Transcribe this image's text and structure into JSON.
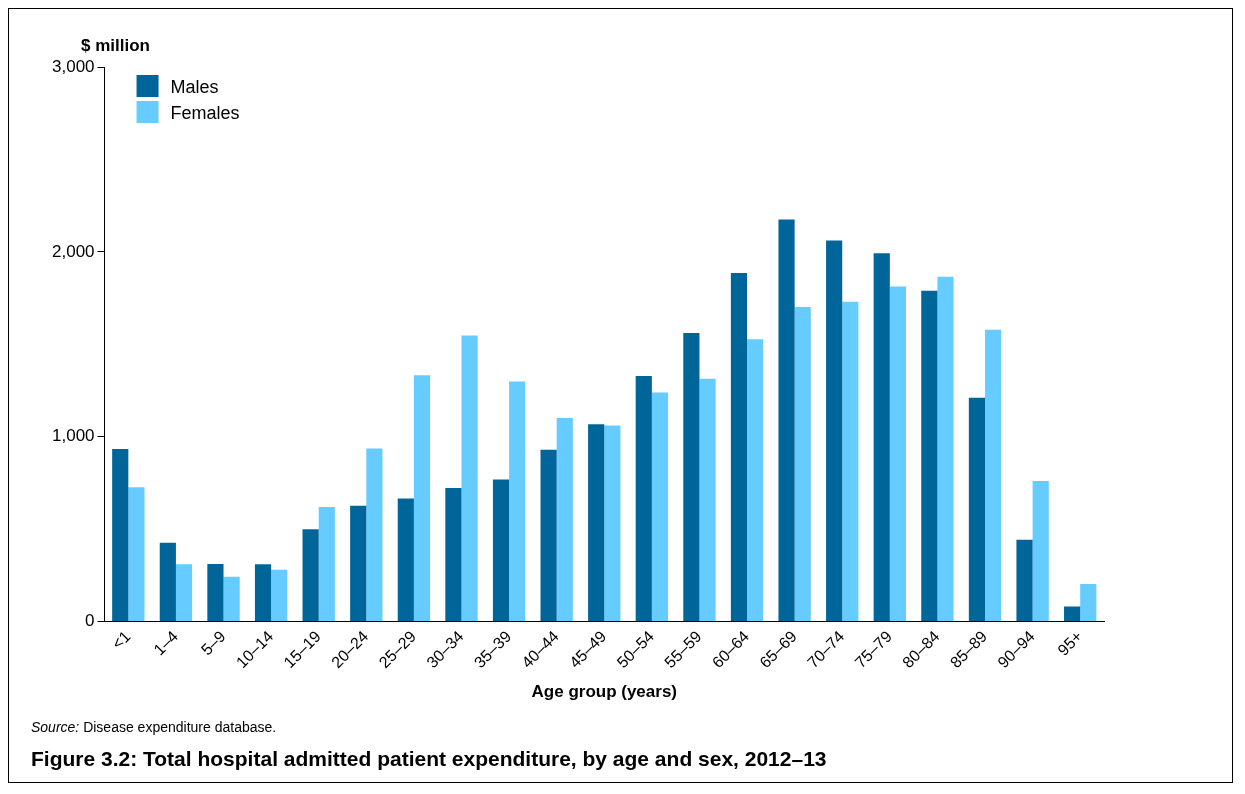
{
  "chart_data": {
    "type": "bar",
    "title": "Figure 3.2: Total hospital admitted patient expenditure, by age and sex, 2012–13",
    "xlabel": "Age group (years)",
    "ylabel": "$ million",
    "categories": [
      "<1",
      "1–4",
      "5–9",
      "10–14",
      "15–19",
      "20–24",
      "25–29",
      "30–34",
      "35–39",
      "40–44",
      "45–49",
      "50–54",
      "55–59",
      "60–64",
      "65–69",
      "70–74",
      "75–79",
      "80–84",
      "85–89",
      "90–94",
      "95+"
    ],
    "series": [
      {
        "name": "Males",
        "color": "#006699",
        "values": [
          934,
          427,
          312,
          310,
          499,
          626,
          666,
          722,
          769,
          930,
          1068,
          1328,
          1561,
          1885,
          2175,
          2062,
          1992,
          1789,
          1211,
          443,
          82
        ]
      },
      {
        "name": "Females",
        "color": "#66ccff",
        "values": [
          726,
          310,
          243,
          280,
          620,
          936,
          1332,
          1547,
          1298,
          1101,
          1060,
          1239,
          1314,
          1527,
          1702,
          1730,
          1813,
          1865,
          1579,
          761,
          203
        ]
      }
    ],
    "ylim": [
      0,
      3000
    ],
    "yticks": [
      {
        "value": 0,
        "label": "0"
      },
      {
        "value": 1000,
        "label": "1,000"
      },
      {
        "value": 2000,
        "label": "2,000"
      },
      {
        "value": 3000,
        "label": "3,000"
      }
    ],
    "grid": false,
    "legend": "top left",
    "annotations": [
      "Source: Disease expenditure database."
    ]
  }
}
